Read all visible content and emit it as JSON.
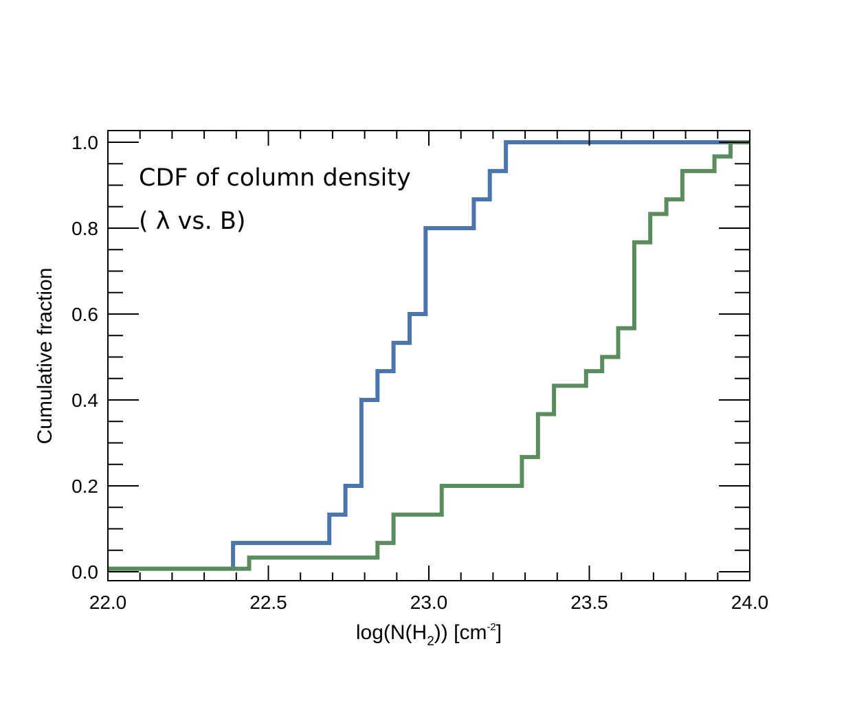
{
  "chart_data": {
    "type": "line",
    "style": "step-cdf",
    "xlim": [
      22.0,
      24.0
    ],
    "ylim": [
      0.0,
      1.0
    ],
    "x_ticks": [
      22.0,
      22.5,
      23.0,
      23.5,
      24.0
    ],
    "x_tick_labels": [
      "22.0",
      "22.5",
      "23.0",
      "23.5",
      "24.0"
    ],
    "y_ticks": [
      0.0,
      0.2,
      0.4,
      0.6,
      0.8,
      1.0
    ],
    "y_tick_labels": [
      "0.0",
      "0.2",
      "0.4",
      "0.6",
      "0.8",
      "1.0"
    ],
    "xlabel": {
      "main": "log(N(H",
      "sub": "2",
      "mid": ")) [cm",
      "sup": "-2",
      "end": "]"
    },
    "ylabel": "Cumulative fraction",
    "annotations": [
      "CDF of column density",
      "( λ vs. B)"
    ],
    "series": [
      {
        "name": "λ",
        "color": "#4a76ad",
        "x": [
          22.0,
          22.39,
          22.39,
          22.69,
          22.69,
          22.74,
          22.74,
          22.79,
          22.79,
          22.84,
          22.84,
          22.89,
          22.89,
          22.94,
          22.94,
          22.99,
          22.99,
          23.14,
          23.14,
          23.19,
          23.19,
          23.24,
          23.24,
          24.0
        ],
        "y": [
          0.007,
          0.007,
          0.067,
          0.067,
          0.133,
          0.133,
          0.2,
          0.2,
          0.4,
          0.4,
          0.467,
          0.467,
          0.533,
          0.533,
          0.6,
          0.6,
          0.8,
          0.8,
          0.867,
          0.867,
          0.933,
          0.933,
          1.0,
          1.0
        ]
      },
      {
        "name": "B",
        "color": "#5a8c5e",
        "x": [
          22.0,
          22.44,
          22.44,
          22.84,
          22.84,
          22.89,
          22.89,
          23.04,
          23.04,
          23.29,
          23.29,
          23.34,
          23.34,
          23.39,
          23.39,
          23.49,
          23.49,
          23.54,
          23.54,
          23.59,
          23.59,
          23.64,
          23.64,
          23.69,
          23.69,
          23.74,
          23.74,
          23.79,
          23.79,
          23.89,
          23.89,
          23.94,
          23.94,
          24.0
        ],
        "y": [
          0.007,
          0.007,
          0.033,
          0.033,
          0.067,
          0.067,
          0.133,
          0.133,
          0.2,
          0.2,
          0.267,
          0.267,
          0.367,
          0.367,
          0.433,
          0.433,
          0.467,
          0.467,
          0.5,
          0.5,
          0.567,
          0.567,
          0.767,
          0.767,
          0.833,
          0.833,
          0.867,
          0.867,
          0.933,
          0.933,
          0.967,
          0.967,
          1.0,
          1.0
        ]
      }
    ]
  }
}
